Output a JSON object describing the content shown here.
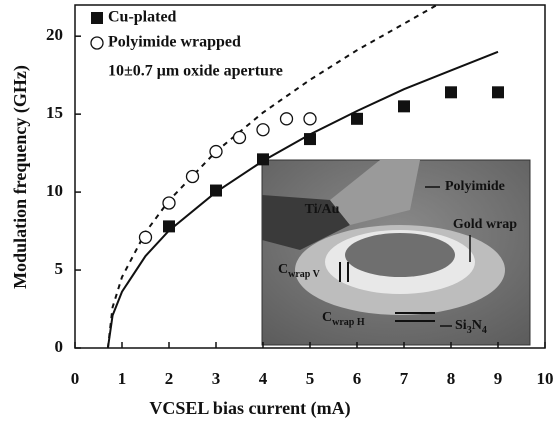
{
  "chart_data": {
    "type": "scatter",
    "x_label": "VCSEL bias current (mA)",
    "y_label": "Modulation frequency (GHz)",
    "xlim": [
      0,
      10
    ],
    "xticks": [
      0,
      1,
      2,
      3,
      4,
      5,
      6,
      7,
      8,
      9,
      10
    ],
    "ylim": [
      0,
      22
    ],
    "yticks": [
      0,
      5,
      10,
      15,
      20
    ],
    "series": [
      {
        "name": "Cu-plated",
        "marker": "square",
        "color": "#111111",
        "x": [
          2,
          3,
          4,
          5,
          6,
          7,
          8,
          9
        ],
        "values": [
          7.8,
          10.1,
          12.1,
          13.4,
          14.7,
          15.5,
          16.4,
          16.4
        ]
      },
      {
        "name": "Polyimide wrapped",
        "marker": "circle",
        "color": "#111111",
        "x": [
          1.5,
          2,
          2.5,
          3,
          3.5,
          4,
          4.5,
          5
        ],
        "values": [
          7.1,
          9.3,
          11,
          12.6,
          13.5,
          14,
          14.7,
          14.7
        ]
      },
      {
        "marker": "line",
        "dash": false,
        "color": "#111111",
        "x": [
          0.7,
          0.8,
          1,
          1.5,
          2,
          3,
          4,
          5,
          6,
          7,
          8,
          9
        ],
        "values": [
          0,
          2.09,
          3.61,
          5.9,
          7.53,
          10.0,
          12.0,
          13.7,
          15.2,
          16.6,
          17.8,
          19.0
        ]
      },
      {
        "marker": "line",
        "dash": true,
        "color": "#111111",
        "x": [
          0.7,
          0.8,
          1,
          1.5,
          2,
          3,
          4,
          5,
          6,
          7,
          7.7
        ],
        "values": [
          0,
          2.62,
          4.55,
          7.42,
          9.46,
          12.6,
          15.1,
          17.2,
          19.1,
          20.8,
          22
        ]
      }
    ],
    "annotation": "10±0.7 μm oxide aperture",
    "inset_labels": [
      {
        "parts": [
          "Ti/Au"
        ]
      },
      {
        "parts": [
          "Polyimide"
        ]
      },
      {
        "parts": [
          "Gold wrap"
        ]
      },
      {
        "parts": [
          "C",
          "wrap V"
        ]
      },
      {
        "parts": [
          "C",
          "wrap H"
        ]
      },
      {
        "parts": [
          "Si",
          "3",
          "N",
          "4"
        ]
      }
    ]
  }
}
